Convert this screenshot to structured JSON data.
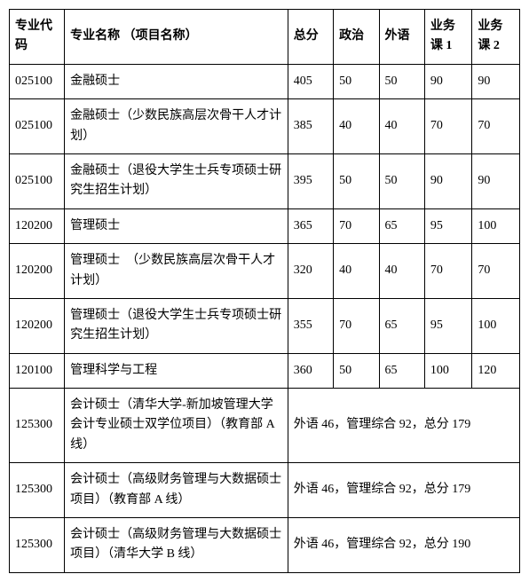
{
  "headers": {
    "code": "专业代码",
    "name": "专业名称\n（项目名称）",
    "total": "总分",
    "politics": "政治",
    "foreign": "外语",
    "course1": "业务课 1",
    "course2": "业务课 2"
  },
  "rows": [
    {
      "code": "025100",
      "name": "金融硕士",
      "total": "405",
      "politics": "50",
      "foreign": "50",
      "course1": "90",
      "course2": "90"
    },
    {
      "code": "025100",
      "name": "金融硕士（少数民族高层次骨干人才计划）",
      "total": "385",
      "politics": "40",
      "foreign": "40",
      "course1": "70",
      "course2": "70"
    },
    {
      "code": "025100",
      "name": "金融硕士（退役大学生士兵专项硕士研究生招生计划）",
      "total": "395",
      "politics": "50",
      "foreign": "50",
      "course1": "90",
      "course2": "90"
    },
    {
      "code": "120200",
      "name": "管理硕士",
      "total": "365",
      "politics": "70",
      "foreign": "65",
      "course1": "95",
      "course2": "100"
    },
    {
      "code": "120200",
      "name": "管理硕士　（少数民族高层次骨干人才计划）",
      "total": "320",
      "politics": "40",
      "foreign": "40",
      "course1": "70",
      "course2": "70"
    },
    {
      "code": "120200",
      "name": "管理硕士（退役大学生士兵专项硕士研究生招生计划）",
      "total": "355",
      "politics": "70",
      "foreign": "65",
      "course1": "95",
      "course2": "100"
    },
    {
      "code": "120100",
      "name": "管理科学与工程",
      "total": "360",
      "politics": "50",
      "foreign": "65",
      "course1": "100",
      "course2": "120"
    }
  ],
  "mergedRows": [
    {
      "code": "125300",
      "name": "会计硕士（清华大学-新加坡管理大学会计专业硕士双学位项目）（教育部 A 线）",
      "note": "外语 46，管理综合 92，总分 179"
    },
    {
      "code": "125300",
      "name": "会计硕士（高级财务管理与大数据硕士项目）（教育部 A 线）",
      "note": "外语 46，管理综合 92，总分 179"
    },
    {
      "code": "125300",
      "name": "会计硕士（高级财务管理与大数据硕士项目）（清华大学 B 线）",
      "note": "外语 46，管理综合 92，总分 190"
    }
  ],
  "style": {
    "background_color": "#ffffff",
    "border_color": "#000000",
    "text_color": "#000000",
    "font_size": 14,
    "font_family": "SimSun",
    "col_widths": {
      "code": 58,
      "name": 235,
      "total": 48,
      "politics": 48,
      "foreign": 48,
      "course1": 50,
      "course2": 50
    }
  }
}
